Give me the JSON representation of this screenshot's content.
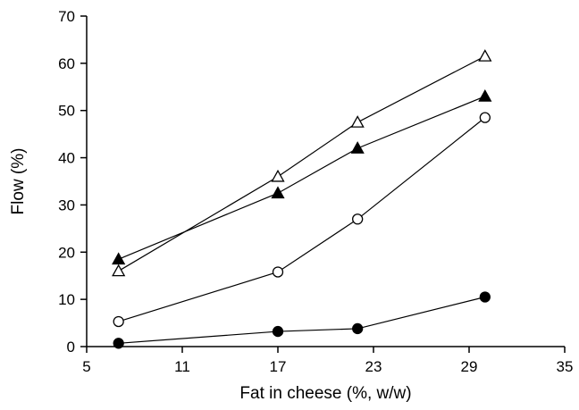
{
  "chart_data": {
    "type": "line",
    "title": "",
    "xlabel": "Fat in cheese (%, w/w)",
    "ylabel": "Flow (%)",
    "xlim": [
      5,
      35
    ],
    "ylim": [
      0,
      70
    ],
    "x_ticks": [
      "5",
      "11",
      "17",
      "23",
      "29",
      "35"
    ],
    "y_ticks": [
      "0",
      "10",
      "20",
      "30",
      "40",
      "50",
      "60",
      "70"
    ],
    "grid": false,
    "legend": "none",
    "series": [
      {
        "marker": "open-triangle",
        "x": [
          7,
          17,
          22,
          30
        ],
        "y": [
          16,
          36,
          47.5,
          61.5
        ]
      },
      {
        "marker": "filled-triangle",
        "x": [
          7,
          17,
          22,
          30
        ],
        "y": [
          18.5,
          32.5,
          42,
          53
        ]
      },
      {
        "marker": "open-circle",
        "x": [
          7,
          17,
          22,
          30
        ],
        "y": [
          5.3,
          15.8,
          27,
          48.5
        ]
      },
      {
        "marker": "filled-circle",
        "x": [
          7,
          17,
          22,
          30
        ],
        "y": [
          0.7,
          3.2,
          3.8,
          10.5
        ]
      }
    ]
  }
}
